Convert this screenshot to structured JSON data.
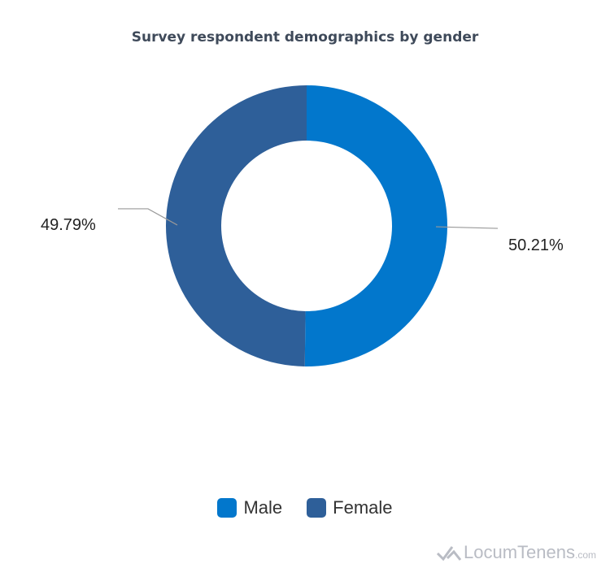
{
  "chart_data": {
    "type": "pie",
    "variant": "donut",
    "title": "Survey respondent demographics by gender",
    "categories": [
      "Male",
      "Female"
    ],
    "values": [
      50.21,
      49.79
    ],
    "labels": [
      "50.21%",
      "49.79%"
    ],
    "colors": [
      "#0277cc",
      "#2e5f99"
    ],
    "legend": "bottom"
  },
  "logo": {
    "name": "LocumTenens",
    "domain": ".com"
  }
}
